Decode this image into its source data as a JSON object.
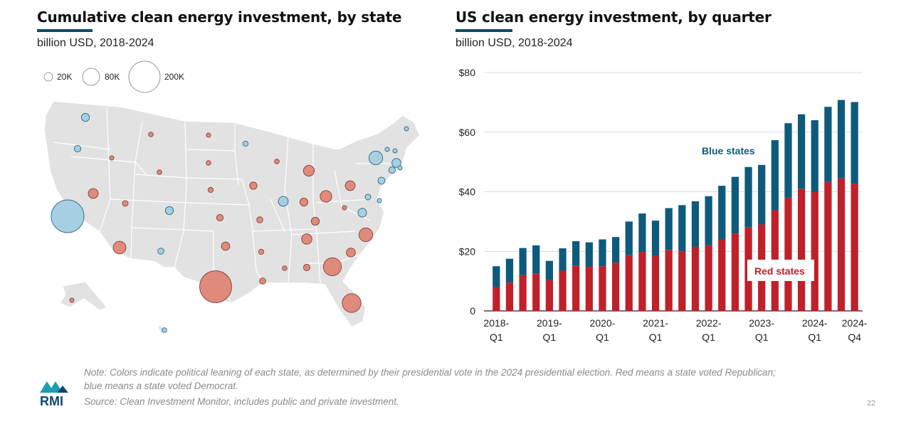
{
  "left": {
    "title": "Cumulative clean energy investment, by state",
    "subtitle": "billion USD, 2018-2024",
    "size_legend": [
      "20K",
      "80K",
      "200K"
    ]
  },
  "right": {
    "title": "US clean energy investment, by quarter",
    "subtitle": "billion USD, 2018-2024"
  },
  "colors": {
    "red": "#c0202a",
    "blue": "#0e5a7c",
    "map_red": "#e08a7c",
    "map_blue": "#a6cfe3",
    "accent_rule": "#0e4a6b"
  },
  "chart_data": [
    {
      "type": "bar",
      "stacked": true,
      "categories": [
        "2018-Q1",
        "2018-Q2",
        "2018-Q3",
        "2018-Q4",
        "2019-Q1",
        "2019-Q2",
        "2019-Q3",
        "2019-Q4",
        "2020-Q1",
        "2020-Q2",
        "2020-Q3",
        "2020-Q4",
        "2021-Q1",
        "2021-Q2",
        "2021-Q3",
        "2021-Q4",
        "2022-Q1",
        "2022-Q2",
        "2022-Q3",
        "2022-Q4",
        "2023-Q1",
        "2023-Q2",
        "2023-Q3",
        "2023-Q4",
        "2024-Q1",
        "2024-Q2",
        "2024-Q3",
        "2024-Q4"
      ],
      "tick_labels": [
        [
          "2018-",
          "Q1"
        ],
        [
          "2019-",
          "Q1"
        ],
        [
          "2020-",
          "Q1"
        ],
        [
          "2021-",
          "Q1"
        ],
        [
          "2022-",
          "Q1"
        ],
        [
          "2023-",
          "Q1"
        ],
        [
          "2024-",
          "Q1"
        ],
        [
          "2024-",
          "Q4"
        ]
      ],
      "tick_indices": [
        0,
        4,
        8,
        12,
        16,
        20,
        24,
        27
      ],
      "series": [
        {
          "name": "Red states",
          "color": "#c0202a",
          "values": [
            8,
            9.5,
            12,
            12.5,
            10.3,
            13.5,
            15.2,
            14.8,
            15,
            16.2,
            18.7,
            19.8,
            18.5,
            20.5,
            20,
            21.5,
            22,
            24,
            26,
            28,
            29,
            33.8,
            38,
            41,
            40,
            43.3,
            44.5,
            42.6
          ]
        },
        {
          "name": "Blue states",
          "color": "#0e5a7c",
          "values": [
            7,
            8,
            9.1,
            9.5,
            6.5,
            7.5,
            8.2,
            8.2,
            9,
            8.6,
            11.3,
            12.9,
            11.8,
            14,
            15.5,
            15.3,
            16.5,
            18,
            19,
            20.3,
            20,
            23.5,
            25,
            25,
            24,
            25.2,
            26.3,
            27.5
          ]
        }
      ],
      "ylim": [
        0,
        80
      ],
      "yticks": [
        "0",
        "$20",
        "$40",
        "$60",
        "$80"
      ],
      "ytick_values": [
        0,
        20,
        40,
        60,
        80
      ],
      "grid": true
    },
    {
      "type": "bubble-map",
      "legend_sizes": [
        20,
        80,
        200
      ],
      "legend_labels": [
        "20K",
        "80K",
        "200K"
      ],
      "states": [
        {
          "state": "WA",
          "party": "blue",
          "value": 12
        },
        {
          "state": "OR",
          "party": "blue",
          "value": 8
        },
        {
          "state": "CA",
          "party": "blue",
          "value": 200
        },
        {
          "state": "NV",
          "party": "red",
          "value": 18
        },
        {
          "state": "ID",
          "party": "red",
          "value": 3
        },
        {
          "state": "MT",
          "party": "red",
          "value": 4
        },
        {
          "state": "WY",
          "party": "red",
          "value": 4
        },
        {
          "state": "UT",
          "party": "red",
          "value": 6
        },
        {
          "state": "AZ",
          "party": "red",
          "value": 30
        },
        {
          "state": "CO",
          "party": "blue",
          "value": 12
        },
        {
          "state": "NM",
          "party": "blue",
          "value": 7
        },
        {
          "state": "ND",
          "party": "red",
          "value": 3
        },
        {
          "state": "SD",
          "party": "red",
          "value": 4
        },
        {
          "state": "NE",
          "party": "red",
          "value": 5
        },
        {
          "state": "KS",
          "party": "red",
          "value": 8
        },
        {
          "state": "OK",
          "party": "red",
          "value": 13
        },
        {
          "state": "TX",
          "party": "red",
          "value": 190
        },
        {
          "state": "MN",
          "party": "blue",
          "value": 5
        },
        {
          "state": "IA",
          "party": "red",
          "value": 10
        },
        {
          "state": "MO",
          "party": "red",
          "value": 7
        },
        {
          "state": "AR",
          "party": "red",
          "value": 5
        },
        {
          "state": "LA",
          "party": "red",
          "value": 7
        },
        {
          "state": "WI",
          "party": "red",
          "value": 4
        },
        {
          "state": "IL",
          "party": "blue",
          "value": 18
        },
        {
          "state": "MI",
          "party": "red",
          "value": 22
        },
        {
          "state": "IN",
          "party": "red",
          "value": 12
        },
        {
          "state": "OH",
          "party": "red",
          "value": 25
        },
        {
          "state": "KY",
          "party": "red",
          "value": 12
        },
        {
          "state": "TN",
          "party": "red",
          "value": 20
        },
        {
          "state": "MS",
          "party": "red",
          "value": 4
        },
        {
          "state": "AL",
          "party": "red",
          "value": 8
        },
        {
          "state": "GA",
          "party": "red",
          "value": 60
        },
        {
          "state": "FL",
          "party": "red",
          "value": 65
        },
        {
          "state": "SC",
          "party": "red",
          "value": 15
        },
        {
          "state": "NC",
          "party": "red",
          "value": 35
        },
        {
          "state": "VA",
          "party": "blue",
          "value": 14
        },
        {
          "state": "WV",
          "party": "red",
          "value": 2
        },
        {
          "state": "PA",
          "party": "red",
          "value": 18
        },
        {
          "state": "NY",
          "party": "blue",
          "value": 35
        },
        {
          "state": "NJ",
          "party": "blue",
          "value": 9
        },
        {
          "state": "MD",
          "party": "blue",
          "value": 6
        },
        {
          "state": "DE",
          "party": "blue",
          "value": 2
        },
        {
          "state": "CT",
          "party": "blue",
          "value": 8
        },
        {
          "state": "RI",
          "party": "blue",
          "value": 3
        },
        {
          "state": "MA",
          "party": "blue",
          "value": 15
        },
        {
          "state": "VT",
          "party": "blue",
          "value": 2
        },
        {
          "state": "NH",
          "party": "blue",
          "value": 2
        },
        {
          "state": "ME",
          "party": "blue",
          "value": 3
        },
        {
          "state": "AK",
          "party": "red",
          "value": 1
        },
        {
          "state": "HI",
          "party": "blue",
          "value": 4
        }
      ]
    }
  ],
  "note_line1": "Note: Colors indicate political leaning of each state, as determined by their presidential vote in the 2024 presidential election. Red means a state voted Republican;",
  "note_line2": "blue means a state voted Democrat.",
  "source": "Source: Clean Investment Monitor, includes public and private investment.",
  "logo_text": "RMI",
  "page_number": "22"
}
